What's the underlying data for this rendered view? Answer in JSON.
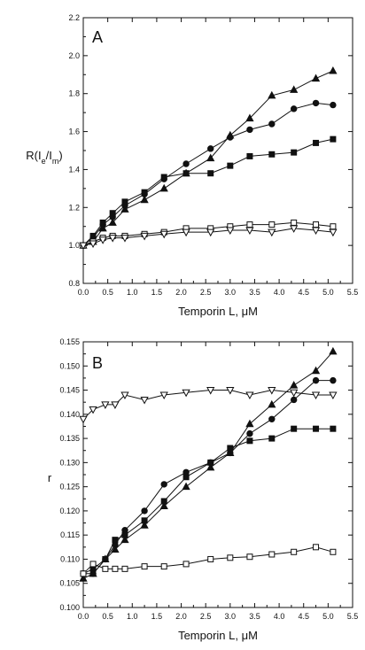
{
  "chart_data": [
    {
      "type": "line",
      "panel": "A",
      "ylabel": "R(I",
      "ylabel_sub1": "e",
      "ylabel_mid": "/I",
      "ylabel_sub2": "m",
      "ylabel_end": ")",
      "xlabel": "Temporin L, μM",
      "xlim": [
        0.0,
        5.5
      ],
      "ylim": [
        0.8,
        2.2
      ],
      "xticks": [
        "0.0",
        "0.5",
        "1.0",
        "1.5",
        "2.0",
        "2.5",
        "3.0",
        "3.5",
        "4.0",
        "4.5",
        "5.0",
        "5.5"
      ],
      "yticks": [
        "0.8",
        "1.0",
        "1.2",
        "1.4",
        "1.6",
        "1.8",
        "2.0",
        "2.2"
      ],
      "grid": false,
      "series": [
        {
          "marker": "triangle-filled",
          "x": [
            0,
            0.2,
            0.4,
            0.6,
            0.85,
            1.25,
            1.65,
            2.1,
            2.6,
            3.0,
            3.4,
            3.85,
            4.3,
            4.75,
            5.1
          ],
          "y": [
            1.0,
            1.02,
            1.09,
            1.12,
            1.19,
            1.24,
            1.3,
            1.38,
            1.46,
            1.58,
            1.67,
            1.79,
            1.82,
            1.88,
            1.92
          ]
        },
        {
          "marker": "circle-filled",
          "x": [
            0,
            0.2,
            0.4,
            0.6,
            0.85,
            1.25,
            1.65,
            2.1,
            2.6,
            3.0,
            3.4,
            3.85,
            4.3,
            4.75,
            5.1
          ],
          "y": [
            1.0,
            1.04,
            1.11,
            1.15,
            1.21,
            1.27,
            1.35,
            1.43,
            1.51,
            1.57,
            1.61,
            1.64,
            1.72,
            1.75,
            1.74
          ]
        },
        {
          "marker": "square-filled",
          "x": [
            0,
            0.2,
            0.4,
            0.6,
            0.85,
            1.25,
            1.65,
            2.1,
            2.6,
            3.0,
            3.4,
            3.85,
            4.3,
            4.75,
            5.1
          ],
          "y": [
            1.0,
            1.05,
            1.12,
            1.17,
            1.23,
            1.28,
            1.36,
            1.38,
            1.38,
            1.42,
            1.47,
            1.48,
            1.49,
            1.54,
            1.56
          ]
        },
        {
          "marker": "square-open",
          "x": [
            0,
            0.2,
            0.4,
            0.6,
            0.85,
            1.25,
            1.65,
            2.1,
            2.6,
            3.0,
            3.4,
            3.85,
            4.3,
            4.75,
            5.1
          ],
          "y": [
            1.0,
            1.02,
            1.04,
            1.05,
            1.05,
            1.06,
            1.07,
            1.09,
            1.09,
            1.1,
            1.11,
            1.11,
            1.12,
            1.11,
            1.1
          ]
        },
        {
          "marker": "triangle-open",
          "x": [
            0,
            0.2,
            0.4,
            0.6,
            0.85,
            1.25,
            1.65,
            2.1,
            2.6,
            3.0,
            3.4,
            3.85,
            4.3,
            4.75,
            5.1
          ],
          "y": [
            1.0,
            1.01,
            1.03,
            1.04,
            1.04,
            1.05,
            1.06,
            1.07,
            1.07,
            1.08,
            1.08,
            1.07,
            1.09,
            1.08,
            1.07
          ]
        }
      ]
    },
    {
      "type": "line",
      "panel": "B",
      "ylabel": "r",
      "xlabel": "Temporin L, μM",
      "xlim": [
        0.0,
        5.5
      ],
      "ylim": [
        0.1,
        0.155
      ],
      "xticks": [
        "0.0",
        "0.5",
        "1.0",
        "1.5",
        "2.0",
        "2.5",
        "3.0",
        "3.5",
        "4.0",
        "4.5",
        "5.0",
        "5.5"
      ],
      "yticks": [
        "0.100",
        "0.105",
        "0.110",
        "0.115",
        "0.120",
        "0.125",
        "0.130",
        "0.135",
        "0.140",
        "0.145",
        "0.150",
        "0.155"
      ],
      "grid": false,
      "series": [
        {
          "marker": "triangle-filled",
          "x": [
            0,
            0.2,
            0.45,
            0.65,
            0.85,
            1.25,
            1.65,
            2.1,
            2.6,
            3.0,
            3.4,
            3.85,
            4.3,
            4.75,
            5.1
          ],
          "y": [
            0.106,
            0.107,
            0.11,
            0.112,
            0.114,
            0.117,
            0.121,
            0.125,
            0.129,
            0.132,
            0.138,
            0.142,
            0.146,
            0.149,
            0.153
          ]
        },
        {
          "marker": "circle-filled",
          "x": [
            0,
            0.2,
            0.45,
            0.65,
            0.85,
            1.25,
            1.65,
            2.1,
            2.6,
            3.0,
            3.4,
            3.85,
            4.3,
            4.75,
            5.1
          ],
          "y": [
            0.107,
            0.107,
            0.11,
            0.113,
            0.116,
            0.12,
            0.1255,
            0.128,
            0.13,
            0.132,
            0.136,
            0.139,
            0.143,
            0.147,
            0.147
          ]
        },
        {
          "marker": "square-filled",
          "x": [
            0,
            0.2,
            0.45,
            0.65,
            0.85,
            1.25,
            1.65,
            2.1,
            2.6,
            3.0,
            3.4,
            3.85,
            4.3,
            4.75,
            5.1
          ],
          "y": [
            0.107,
            0.108,
            0.11,
            0.114,
            0.115,
            0.118,
            0.122,
            0.127,
            0.13,
            0.133,
            0.1345,
            0.135,
            0.137,
            0.137,
            0.137
          ]
        },
        {
          "marker": "triangle-open",
          "x": [
            0,
            0.2,
            0.45,
            0.65,
            0.85,
            1.25,
            1.65,
            2.1,
            2.6,
            3.0,
            3.4,
            3.85,
            4.3,
            4.75,
            5.1
          ],
          "y": [
            0.139,
            0.141,
            0.142,
            0.142,
            0.144,
            0.143,
            0.144,
            0.1445,
            0.145,
            0.145,
            0.144,
            0.145,
            0.1445,
            0.144,
            0.144
          ]
        },
        {
          "marker": "square-open",
          "x": [
            0,
            0.2,
            0.45,
            0.65,
            0.85,
            1.25,
            1.65,
            2.1,
            2.6,
            3.0,
            3.4,
            3.85,
            4.3,
            4.75,
            5.1
          ],
          "y": [
            0.107,
            0.109,
            0.108,
            0.108,
            0.108,
            0.1085,
            0.1085,
            0.109,
            0.11,
            0.1103,
            0.1105,
            0.111,
            0.1115,
            0.1125,
            0.1115
          ]
        }
      ]
    }
  ]
}
